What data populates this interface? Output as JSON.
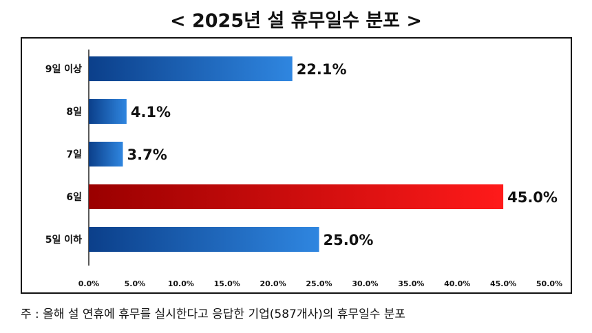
{
  "header": {
    "title": "< 2025년 설 휴무일수 분포 >"
  },
  "footnote": "주 : 올해 설 연휴에 휴무를 실시한다고 응답한 기업(587개사)의 휴무일수 분포",
  "colors": {
    "blue_dark": "#0b3f8a",
    "blue_light": "#2f86e0",
    "red_dark": "#9a0000",
    "red_light": "#ff1a1a"
  },
  "chart_data": {
    "type": "bar",
    "orientation": "horizontal",
    "title": "< 2025년 설 휴무일수 분포 >",
    "categories": [
      "9일 이상",
      "8일",
      "7일",
      "6일",
      "5일 이하"
    ],
    "values": [
      22.1,
      4.1,
      3.7,
      45.0,
      25.0
    ],
    "value_labels": [
      "22.1%",
      "4.1%",
      "3.7%",
      "45.0%",
      "25.0%"
    ],
    "highlight_index": 3,
    "xlim": [
      0,
      50
    ],
    "x_ticks": [
      "0.0%",
      "5.0%",
      "10.0%",
      "15.0%",
      "20.0%",
      "25.0%",
      "30.0%",
      "35.0%",
      "40.0%",
      "45.0%",
      "50.0%"
    ],
    "grid": false,
    "legend": "none"
  }
}
